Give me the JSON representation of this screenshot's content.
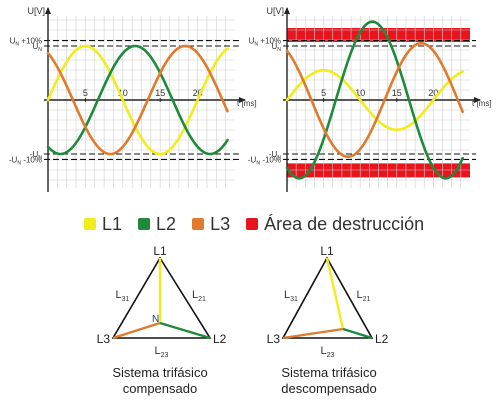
{
  "colors": {
    "L1": "#f2ec1a",
    "L2": "#1f8a3c",
    "L3": "#e07a2c",
    "destruction": "#e8141e",
    "grid": "#cfcfcf",
    "axis": "#222222"
  },
  "legend": [
    {
      "key": "L1",
      "label": "L1"
    },
    {
      "key": "L2",
      "label": "L2"
    },
    {
      "key": "L3",
      "label": "L3"
    },
    {
      "key": "destruction",
      "label": "Área de destrucción"
    }
  ],
  "chart_data": [
    {
      "type": "line",
      "ylabel": "U[V]",
      "xlabel": "t [ms]",
      "xticks": [
        "5",
        "10",
        "15",
        "20"
      ],
      "xlim": [
        0,
        25
      ],
      "ylim": [
        -1.25,
        1.25
      ],
      "ref_labels": {
        "pos_plus10": "U_N +10%",
        "pos": "U_N",
        "neg": "-U_N",
        "neg_minus10": "-U_N -10%"
      },
      "ref_levels": {
        "pos_plus10": 1.1,
        "pos": 1.0,
        "neg": -1.0,
        "neg_minus10": -1.1
      },
      "series": [
        {
          "name": "L1",
          "amplitude": 1.0,
          "phase_deg": 0
        },
        {
          "name": "L2",
          "amplitude": 1.0,
          "phase_deg": -120
        },
        {
          "name": "L3",
          "amplitude": 1.0,
          "phase_deg": 120
        }
      ],
      "period_ms": 20,
      "destruction_area": false
    },
    {
      "type": "line",
      "ylabel": "U[V]",
      "xlabel": "t [ms]",
      "xticks": [
        "5",
        "10",
        "15",
        "20"
      ],
      "xlim": [
        0,
        25
      ],
      "ylim": [
        -1.55,
        1.55
      ],
      "ref_labels": {
        "pos_plus10": "U_N +10%",
        "pos": "U_N",
        "neg": "-U_N",
        "neg_minus10": "-U_N -10%"
      },
      "ref_levels": {
        "pos_plus10": 1.1,
        "pos": 1.0,
        "neg": -1.0,
        "neg_minus10": -1.1
      },
      "series": [
        {
          "name": "L1",
          "amplitude": 0.55,
          "phase_deg": 0
        },
        {
          "name": "L2",
          "amplitude": 1.45,
          "phase_deg": -120
        },
        {
          "name": "L3",
          "amplitude": 1.05,
          "phase_deg": 120
        }
      ],
      "period_ms": 20,
      "destruction_area": true
    }
  ],
  "triangles": [
    {
      "vertices": {
        "top": "L1",
        "left": "L3",
        "right": "L2"
      },
      "sides": {
        "left": "L31",
        "right": "L21",
        "bottom": "L23"
      },
      "center": "N",
      "caption": [
        "Sistema trifásico",
        "compensado"
      ]
    },
    {
      "vertices": {
        "top": "L1",
        "left": "L3",
        "right": "L2"
      },
      "sides": {
        "left": "L31",
        "right": "L21",
        "bottom": "L23"
      },
      "center": "",
      "caption": [
        "Sistema trifásico",
        "descompensado"
      ]
    }
  ]
}
